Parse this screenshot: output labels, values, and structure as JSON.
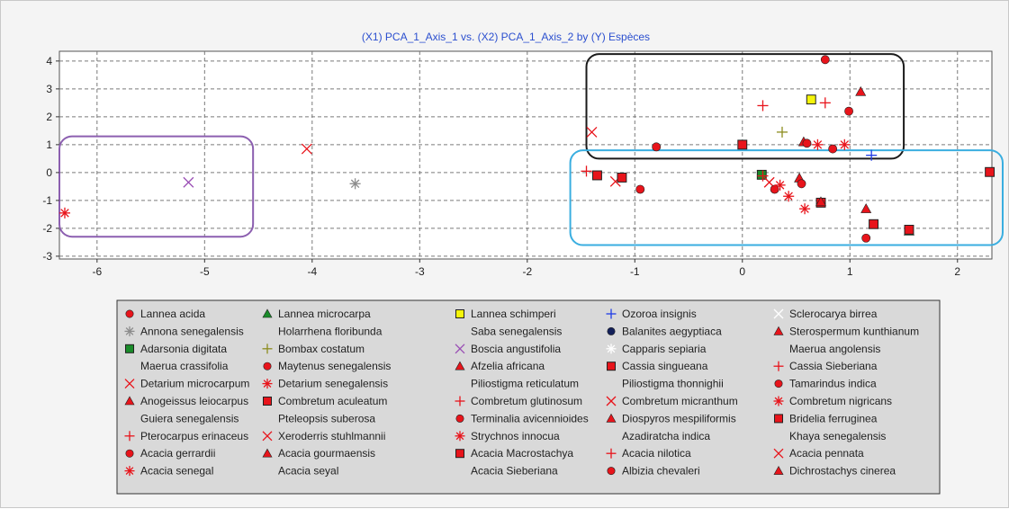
{
  "chart_data": {
    "type": "scatter",
    "title": "(X1) PCA_1_Axis_1 vs. (X2) PCA_1_Axis_2 by (Y) Espèces",
    "xlabel": "",
    "ylabel": "",
    "xlim": [
      -6.35,
      2.32
    ],
    "ylim": [
      -3.1,
      4.35
    ],
    "x_ticks": [
      -6,
      -5,
      -4,
      -3,
      -2,
      -1,
      0,
      1,
      2
    ],
    "y_ticks": [
      4,
      3,
      2,
      1,
      0,
      -1,
      -2,
      -3
    ],
    "grid": true,
    "legend_position": "bottom",
    "colors": {
      "red": "#e8141b",
      "green": "#1a8c2a",
      "yellow": "#f5f50a",
      "blue": "#1f3ce6",
      "navy": "#13205a",
      "gray": "#8c8c8c",
      "olive": "#8c8c1e",
      "purple": "#9a4fb5",
      "white": "#ffffff",
      "box_black": "#1a1a1a",
      "box_purple": "#8c5fb0",
      "box_cyan": "#3aaee0"
    },
    "highlight_boxes": [
      {
        "name": "purple-group",
        "color": "box_purple",
        "x_range": [
          -6.35,
          -4.7
        ],
        "y_range": [
          -2.3,
          1.3
        ]
      },
      {
        "name": "black-group",
        "color": "box_black",
        "x_range": [
          -1.45,
          1.35
        ],
        "y_range": [
          0.5,
          4.25
        ]
      },
      {
        "name": "cyan-group",
        "color": "box_cyan",
        "x_range": [
          -1.6,
          2.32
        ],
        "y_range": [
          -2.6,
          0.8
        ]
      }
    ],
    "points": [
      {
        "x": 0.77,
        "y": 4.05,
        "marker": "circle",
        "color": "red"
      },
      {
        "x": 1.1,
        "y": 2.9,
        "marker": "triangle",
        "color": "red"
      },
      {
        "x": 0.64,
        "y": 2.62,
        "marker": "square",
        "color": "yellow"
      },
      {
        "x": 0.77,
        "y": 2.5,
        "marker": "plus",
        "color": "red"
      },
      {
        "x": 0.19,
        "y": 2.4,
        "marker": "plus",
        "color": "red"
      },
      {
        "x": 0.99,
        "y": 2.2,
        "marker": "circle",
        "color": "red"
      },
      {
        "x": -1.4,
        "y": 1.45,
        "marker": "x",
        "color": "red"
      },
      {
        "x": 0.37,
        "y": 1.45,
        "marker": "plus",
        "color": "olive"
      },
      {
        "x": 0.57,
        "y": 1.1,
        "marker": "triangle",
        "color": "red"
      },
      {
        "x": 0.6,
        "y": 1.05,
        "marker": "circle",
        "color": "red"
      },
      {
        "x": 0.7,
        "y": 1.0,
        "marker": "star",
        "color": "red"
      },
      {
        "x": 0.95,
        "y": 1.0,
        "marker": "star",
        "color": "red"
      },
      {
        "x": 0.0,
        "y": 1.0,
        "marker": "square",
        "color": "red"
      },
      {
        "x": -0.8,
        "y": 0.92,
        "marker": "circle",
        "color": "red"
      },
      {
        "x": 0.84,
        "y": 0.85,
        "marker": "circle",
        "color": "red"
      },
      {
        "x": 1.2,
        "y": 0.62,
        "marker": "plus",
        "color": "blue"
      },
      {
        "x": -1.45,
        "y": 0.05,
        "marker": "plus",
        "color": "red"
      },
      {
        "x": -1.35,
        "y": -0.1,
        "marker": "square",
        "color": "red"
      },
      {
        "x": -1.18,
        "y": -0.32,
        "marker": "x",
        "color": "red"
      },
      {
        "x": -1.12,
        "y": -0.18,
        "marker": "square",
        "color": "red"
      },
      {
        "x": -0.95,
        "y": -0.6,
        "marker": "circle",
        "color": "red"
      },
      {
        "x": 0.18,
        "y": -0.08,
        "marker": "square",
        "color": "green"
      },
      {
        "x": 0.19,
        "y": -0.12,
        "marker": "plus",
        "color": "red"
      },
      {
        "x": 0.25,
        "y": -0.35,
        "marker": "x",
        "color": "red"
      },
      {
        "x": 0.3,
        "y": -0.6,
        "marker": "circle",
        "color": "red"
      },
      {
        "x": 0.35,
        "y": -0.45,
        "marker": "star",
        "color": "red"
      },
      {
        "x": 0.43,
        "y": -0.85,
        "marker": "star",
        "color": "red"
      },
      {
        "x": 0.5,
        "y": -1.1,
        "marker": "star",
        "color": "white"
      },
      {
        "x": 0.53,
        "y": -0.2,
        "marker": "triangle",
        "color": "red"
      },
      {
        "x": 0.55,
        "y": -0.4,
        "marker": "circle",
        "color": "red"
      },
      {
        "x": 0.58,
        "y": -1.3,
        "marker": "star",
        "color": "red"
      },
      {
        "x": 0.73,
        "y": -1.08,
        "marker": "square",
        "color": "red"
      },
      {
        "x": 0.73,
        "y": -1.05,
        "marker": "triangle",
        "color": "red"
      },
      {
        "x": 1.15,
        "y": -1.3,
        "marker": "triangle",
        "color": "red"
      },
      {
        "x": 1.22,
        "y": -1.85,
        "marker": "square",
        "color": "red"
      },
      {
        "x": 1.15,
        "y": -2.35,
        "marker": "circle",
        "color": "red"
      },
      {
        "x": 1.55,
        "y": -2.1,
        "marker": "triangle",
        "color": "green"
      },
      {
        "x": 1.55,
        "y": -2.05,
        "marker": "square",
        "color": "red"
      },
      {
        "x": 2.3,
        "y": 0.02,
        "marker": "square",
        "color": "red"
      },
      {
        "x": -4.05,
        "y": 0.85,
        "marker": "x",
        "color": "red"
      },
      {
        "x": -5.15,
        "y": -0.35,
        "marker": "x",
        "color": "purple"
      },
      {
        "x": -3.6,
        "y": -0.4,
        "marker": "star",
        "color": "gray"
      },
      {
        "x": -6.3,
        "y": -1.45,
        "marker": "star",
        "color": "red"
      }
    ],
    "legend": [
      {
        "label": "Lannea acida",
        "marker": "circle",
        "color": "red"
      },
      {
        "label": "Lannea microcarpa",
        "marker": "triangle",
        "color": "green"
      },
      {
        "label": "Lannea schimperi",
        "marker": "square",
        "color": "yellow"
      },
      {
        "label": "Ozoroa insignis",
        "marker": "plus",
        "color": "blue"
      },
      {
        "label": "Sclerocarya birrea",
        "marker": "x",
        "color": "white"
      },
      {
        "label": "Annona senegalensis",
        "marker": "star",
        "color": "gray"
      },
      {
        "label": "Holarrhena floribunda",
        "marker": "none",
        "color": "red"
      },
      {
        "label": "Saba senegalensis",
        "marker": "none",
        "color": "red"
      },
      {
        "label": "Balanites aegyptiaca",
        "marker": "circle",
        "color": "navy"
      },
      {
        "label": "Sterospermum kunthianum",
        "marker": "triangle",
        "color": "red"
      },
      {
        "label": "Adarsonia digitata",
        "marker": "square",
        "color": "green"
      },
      {
        "label": "Bombax costatum",
        "marker": "plus",
        "color": "olive"
      },
      {
        "label": "Boscia angustifolia",
        "marker": "x",
        "color": "purple"
      },
      {
        "label": "Capparis sepiaria",
        "marker": "star",
        "color": "white"
      },
      {
        "label": "Maerua angolensis",
        "marker": "none",
        "color": "red"
      },
      {
        "label": "Maerua crassifolia",
        "marker": "none",
        "color": "red"
      },
      {
        "label": "Maytenus senegalensis",
        "marker": "circle",
        "color": "red"
      },
      {
        "label": "Afzelia africana",
        "marker": "triangle",
        "color": "red"
      },
      {
        "label": "Cassia singueana",
        "marker": "square",
        "color": "red"
      },
      {
        "label": "Cassia Sieberiana",
        "marker": "plus",
        "color": "red"
      },
      {
        "label": "Detarium microcarpum",
        "marker": "x",
        "color": "red"
      },
      {
        "label": "Detarium senegalensis",
        "marker": "star",
        "color": "red"
      },
      {
        "label": "Piliostigma reticulatum",
        "marker": "none",
        "color": "red"
      },
      {
        "label": "Piliostigma thonnighii",
        "marker": "none",
        "color": "red"
      },
      {
        "label": "Tamarindus indica",
        "marker": "circle",
        "color": "red"
      },
      {
        "label": "Anogeissus leiocarpus",
        "marker": "triangle",
        "color": "red"
      },
      {
        "label": "Combretum aculeatum",
        "marker": "square",
        "color": "red"
      },
      {
        "label": "Combretum glutinosum",
        "marker": "plus",
        "color": "red"
      },
      {
        "label": "Combretum micranthum",
        "marker": "x",
        "color": "red"
      },
      {
        "label": "Combretum nigricans",
        "marker": "star",
        "color": "red"
      },
      {
        "label": "Guiera senegalensis",
        "marker": "none",
        "color": "red"
      },
      {
        "label": "Pteleopsis suberosa",
        "marker": "none",
        "color": "red"
      },
      {
        "label": "Terminalia avicennioides",
        "marker": "circle",
        "color": "red"
      },
      {
        "label": "Diospyros mespiliformis",
        "marker": "triangle",
        "color": "red"
      },
      {
        "label": "Bridelia ferruginea",
        "marker": "square",
        "color": "red"
      },
      {
        "label": "Pterocarpus erinaceus",
        "marker": "plus",
        "color": "red"
      },
      {
        "label": "Xeroderris stuhlmannii",
        "marker": "x",
        "color": "red"
      },
      {
        "label": "Strychnos innocua",
        "marker": "star",
        "color": "red"
      },
      {
        "label": "Azadiratcha indica",
        "marker": "none",
        "color": "red"
      },
      {
        "label": "Khaya senegalensis",
        "marker": "none",
        "color": "red"
      },
      {
        "label": "Acacia gerrardii",
        "marker": "circle",
        "color": "red"
      },
      {
        "label": "Acacia gourmaensis",
        "marker": "triangle",
        "color": "red"
      },
      {
        "label": "Acacia Macrostachya",
        "marker": "square",
        "color": "red"
      },
      {
        "label": "Acacia nilotica",
        "marker": "plus",
        "color": "red"
      },
      {
        "label": "Acacia pennata",
        "marker": "x",
        "color": "red"
      },
      {
        "label": "Acacia senegal",
        "marker": "star",
        "color": "red"
      },
      {
        "label": "Acacia seyal",
        "marker": "none",
        "color": "red"
      },
      {
        "label": "Acacia Sieberiana",
        "marker": "none",
        "color": "red"
      },
      {
        "label": "Albizia chevaleri",
        "marker": "circle",
        "color": "red"
      },
      {
        "label": "Dichrostachys cinerea",
        "marker": "triangle",
        "color": "red"
      }
    ]
  }
}
